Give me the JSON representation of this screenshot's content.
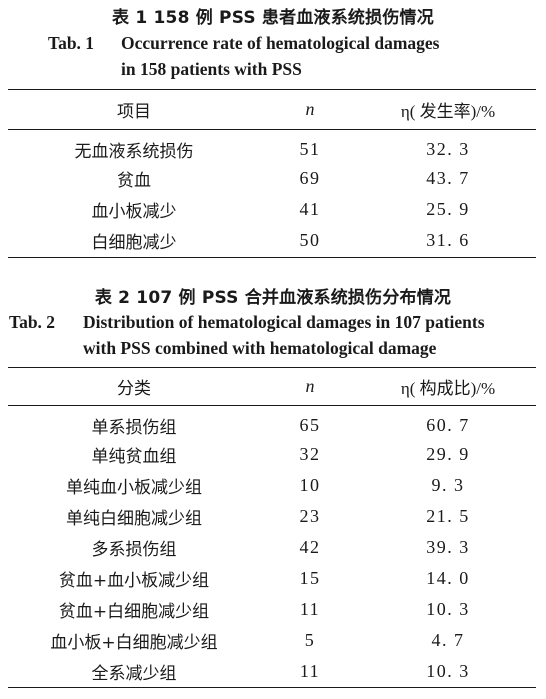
{
  "table1": {
    "caption_cn": "表 1   158 例 PSS 患者血液系统损伤情况",
    "caption_en_label": "Tab. 1",
    "caption_en_line1": "Occurrence rate of hematological damages",
    "caption_en_line2": "in 158 patients with PSS",
    "header": {
      "item": "项目",
      "n": "n",
      "rate": "η( 发生率)/%"
    },
    "rows": [
      {
        "item": "无血液系统损伤",
        "n": "51",
        "rate": "32. 3"
      },
      {
        "item": "贫血",
        "n": "69",
        "rate": "43. 7"
      },
      {
        "item": "血小板减少",
        "n": "41",
        "rate": "25. 9"
      },
      {
        "item": "白细胞减少",
        "n": "50",
        "rate": "31. 6"
      }
    ]
  },
  "table2": {
    "caption_cn": "表 2   107 例 PSS 合并血液系统损伤分布情况",
    "caption_en_label": "Tab. 2",
    "caption_en_line1": "Distribution of hematological damages in 107 patients",
    "caption_en_line2": "with PSS combined with hematological damage",
    "header": {
      "item": "分类",
      "n": "n",
      "rate": "η( 构成比)/%"
    },
    "rows": [
      {
        "item": "单系损伤组",
        "n": "65",
        "rate": "60. 7"
      },
      {
        "item": "单纯贫血组",
        "n": "32",
        "rate": "29. 9"
      },
      {
        "item": "单纯血小板减少组",
        "n": "10",
        "rate": "9. 3"
      },
      {
        "item": "单纯白细胞减少组",
        "n": "23",
        "rate": "21. 5"
      },
      {
        "item": "多系损伤组",
        "n": "42",
        "rate": "39. 3"
      },
      {
        "item": "贫血+血小板减少组",
        "n": "15",
        "rate": "14. 0"
      },
      {
        "item": "贫血+白细胞减少组",
        "n": "11",
        "rate": "10. 3"
      },
      {
        "item": "血小板+白细胞减少组",
        "n": "5",
        "rate": "4. 7"
      },
      {
        "item": "全系减少组",
        "n": "11",
        "rate": "10. 3"
      }
    ]
  }
}
